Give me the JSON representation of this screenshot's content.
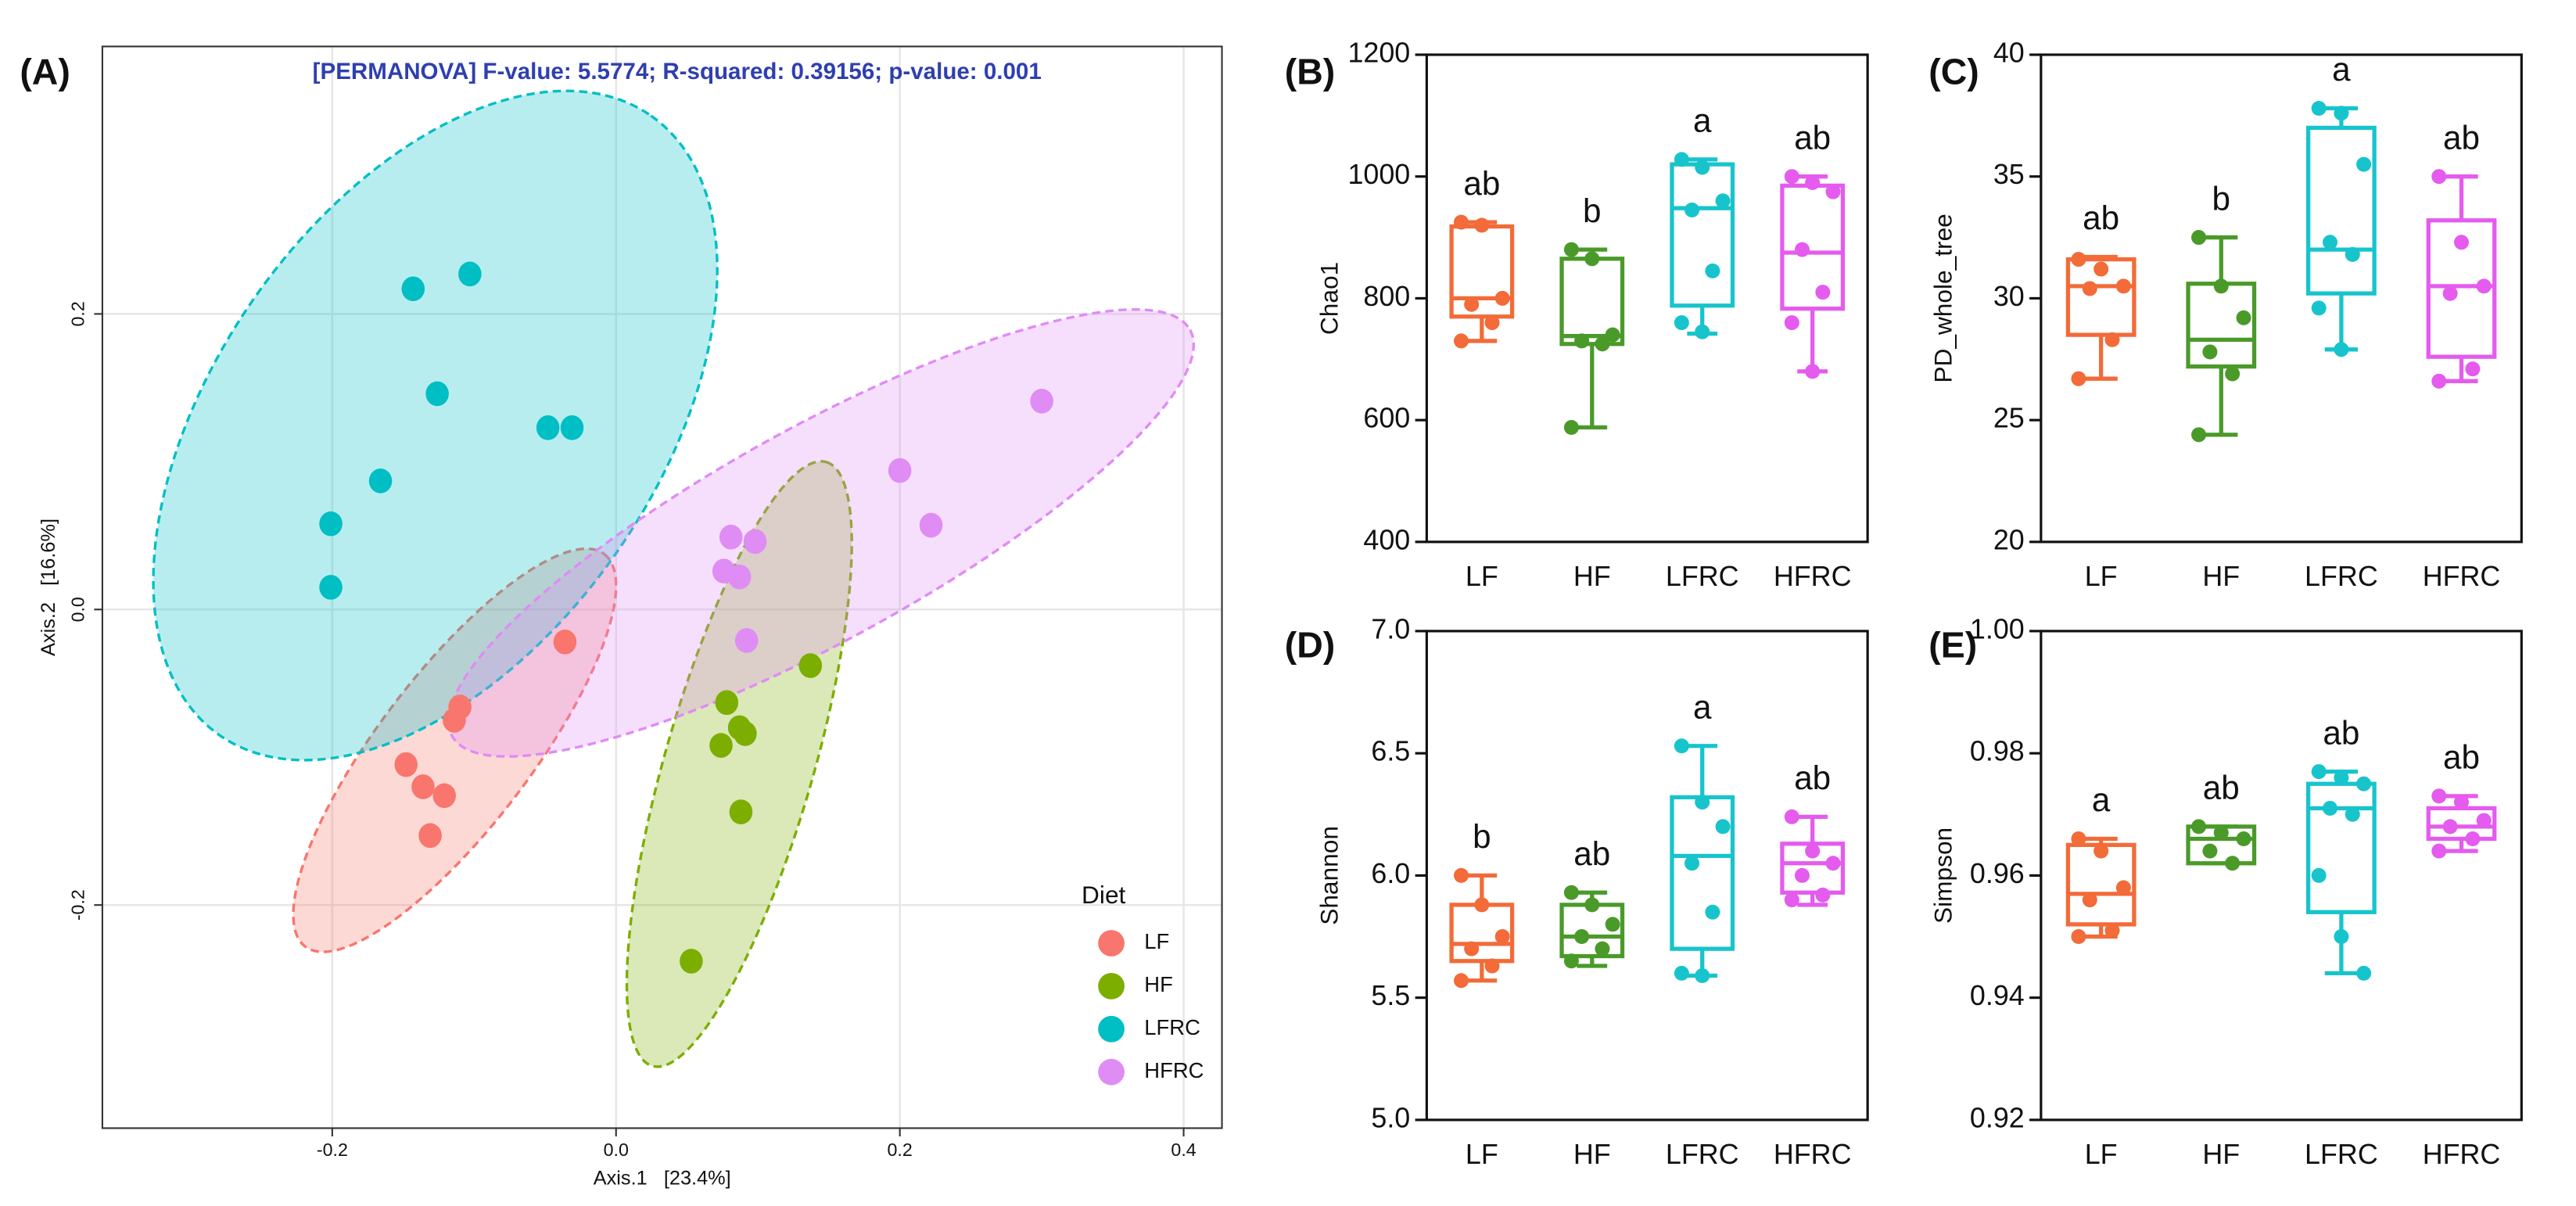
{
  "chart_data": [
    {
      "type": "scatter",
      "label": "(A)",
      "title": "[PERMANOVA] F-value: 5.5774; R-squared: 0.39156; p-value: 0.001",
      "xlabel": "Axis.1   [23.4%]",
      "ylabel": "Axis.2   [16.6%]",
      "xlim": [
        -0.362,
        0.427
      ],
      "ylim": [
        -0.351,
        0.381
      ],
      "xticks": [
        -0.2,
        {
          "value": 0,
          "label": "0.0"
        },
        0.2,
        0.4
      ],
      "yticks": [
        -0.2,
        {
          "value": 0,
          "label": "0.0"
        },
        0.2
      ],
      "grid": true,
      "legend": {
        "title": "Diet",
        "position": "bottom-right"
      },
      "series": [
        {
          "name": "LF",
          "color": "#f8766d",
          "x": [
            -0.036,
            -0.11,
            -0.114,
            -0.148,
            -0.136,
            -0.121,
            -0.131
          ],
          "y": [
            -0.022,
            -0.066,
            -0.075,
            -0.105,
            -0.12,
            -0.126,
            -0.153
          ]
        },
        {
          "name": "HF",
          "color": "#7cae00",
          "x": [
            0.137,
            0.078,
            0.087,
            0.091,
            0.074,
            0.088,
            0.053
          ],
          "y": [
            -0.038,
            -0.063,
            -0.08,
            -0.084,
            -0.092,
            -0.137,
            -0.238
          ]
        },
        {
          "name": "LFRC",
          "color": "#00bfc4",
          "x": [
            -0.143,
            -0.103,
            -0.126,
            -0.048,
            -0.031,
            -0.166,
            -0.201,
            -0.201
          ],
          "y": [
            0.217,
            0.227,
            0.146,
            0.123,
            0.123,
            0.087,
            0.058,
            0.015
          ]
        },
        {
          "name": "HFRC",
          "color": "#df8cf5",
          "x": [
            0.3,
            0.2,
            0.222,
            0.081,
            0.098,
            0.076,
            0.087,
            0.092
          ],
          "y": [
            0.141,
            0.094,
            0.057,
            0.049,
            0.046,
            0.026,
            0.022,
            -0.021
          ]
        }
      ]
    },
    {
      "type": "box",
      "label": "(B)",
      "ylabel": "Chao1",
      "ylim": [
        400,
        1200
      ],
      "yticks": [
        400,
        600,
        800,
        1000,
        1200
      ],
      "series": [
        {
          "name": "LF",
          "color": "#f26b38",
          "min": 730,
          "q1": 770,
          "median": 800,
          "q3": 918,
          "max": 925,
          "points": [
            925,
            920,
            800,
            790,
            760,
            730
          ],
          "letter": "ab"
        },
        {
          "name": "HF",
          "color": "#4a9a2a",
          "min": 588,
          "q1": 725,
          "median": 738,
          "q3": 865,
          "max": 880,
          "points": [
            880,
            865,
            740,
            730,
            725,
            588
          ],
          "letter": "b"
        },
        {
          "name": "LFRC",
          "color": "#17c4cc",
          "min": 742,
          "q1": 788,
          "median": 948,
          "q3": 1020,
          "max": 1028,
          "points": [
            1028,
            1015,
            960,
            945,
            845,
            760,
            745
          ],
          "letter": "a"
        },
        {
          "name": "HFRC",
          "color": "#e45bee",
          "min": 680,
          "q1": 783,
          "median": 875,
          "q3": 985,
          "max": 1000,
          "points": [
            1000,
            990,
            975,
            880,
            810,
            760,
            680
          ],
          "letter": "ab"
        }
      ]
    },
    {
      "type": "box",
      "label": "(C)",
      "ylabel": "PD_whole_tree",
      "ylim": [
        20,
        40
      ],
      "yticks": [
        20,
        25,
        30,
        35,
        40
      ],
      "series": [
        {
          "name": "LF",
          "color": "#f26b38",
          "min": 26.7,
          "q1": 28.5,
          "median": 30.5,
          "q3": 31.6,
          "max": 31.7,
          "points": [
            31.6,
            31.2,
            30.5,
            30.4,
            28.3,
            26.7
          ],
          "letter": "ab"
        },
        {
          "name": "HF",
          "color": "#4a9a2a",
          "min": 24.4,
          "q1": 27.2,
          "median": 28.3,
          "q3": 30.6,
          "max": 32.5,
          "points": [
            32.5,
            30.5,
            29.2,
            27.8,
            26.9,
            24.4
          ],
          "letter": "b"
        },
        {
          "name": "LFRC",
          "color": "#17c4cc",
          "min": 27.9,
          "q1": 30.2,
          "median": 32.0,
          "q3": 37.0,
          "max": 37.8,
          "points": [
            37.8,
            37.6,
            35.5,
            32.3,
            31.8,
            29.6,
            27.9
          ],
          "letter": "a"
        },
        {
          "name": "HFRC",
          "color": "#e45bee",
          "min": 26.6,
          "q1": 27.6,
          "median": 30.5,
          "q3": 33.2,
          "max": 35.0,
          "points": [
            35.0,
            32.3,
            30.5,
            30.2,
            27.1,
            26.6
          ],
          "letter": "ab"
        }
      ]
    },
    {
      "type": "box",
      "label": "(D)",
      "ylabel": "Shannon",
      "ylim": [
        5.0,
        7.0
      ],
      "yticks": [
        {
          "value": 5,
          "label": "5.0"
        },
        5.5,
        {
          "value": 6,
          "label": "6.0"
        },
        6.5,
        {
          "value": 7,
          "label": "7.0"
        }
      ],
      "series": [
        {
          "name": "LF",
          "color": "#f26b38",
          "min": 5.57,
          "q1": 5.65,
          "median": 5.72,
          "q3": 5.88,
          "max": 6.0,
          "points": [
            6.0,
            5.88,
            5.75,
            5.7,
            5.63,
            5.57
          ],
          "letter": "b"
        },
        {
          "name": "HF",
          "color": "#4a9a2a",
          "min": 5.63,
          "q1": 5.67,
          "median": 5.75,
          "q3": 5.88,
          "max": 5.93,
          "points": [
            5.93,
            5.88,
            5.8,
            5.75,
            5.7,
            5.65
          ],
          "letter": "ab"
        },
        {
          "name": "LFRC",
          "color": "#17c4cc",
          "min": 5.59,
          "q1": 5.7,
          "median": 6.08,
          "q3": 6.32,
          "max": 6.53,
          "points": [
            6.53,
            6.3,
            6.2,
            6.05,
            5.85,
            5.6,
            5.59
          ],
          "letter": "a"
        },
        {
          "name": "HFRC",
          "color": "#e45bee",
          "min": 5.88,
          "q1": 5.93,
          "median": 6.05,
          "q3": 6.13,
          "max": 6.24,
          "points": [
            6.24,
            6.1,
            6.05,
            6.0,
            5.92,
            5.9
          ],
          "letter": "ab"
        }
      ]
    },
    {
      "type": "box",
      "label": "(E)",
      "ylabel": "Simpson",
      "ylim": [
        0.92,
        1.0
      ],
      "yticks": [
        0.92,
        0.94,
        0.96,
        0.98,
        {
          "value": 1,
          "label": "1.00"
        }
      ],
      "series": [
        {
          "name": "LF",
          "color": "#f26b38",
          "min": 0.95,
          "q1": 0.952,
          "median": 0.957,
          "q3": 0.965,
          "max": 0.966,
          "points": [
            0.966,
            0.964,
            0.958,
            0.956,
            0.951,
            0.95
          ],
          "letter": "a"
        },
        {
          "name": "HF",
          "color": "#4a9a2a",
          "min": 0.962,
          "q1": 0.962,
          "median": 0.966,
          "q3": 0.968,
          "max": 0.968,
          "points": [
            0.968,
            0.967,
            0.966,
            0.964,
            0.962
          ],
          "letter": "ab"
        },
        {
          "name": "LFRC",
          "color": "#17c4cc",
          "min": 0.944,
          "q1": 0.954,
          "median": 0.971,
          "q3": 0.975,
          "max": 0.977,
          "points": [
            0.977,
            0.976,
            0.975,
            0.971,
            0.97,
            0.96,
            0.95,
            0.944
          ],
          "letter": "ab"
        },
        {
          "name": "HFRC",
          "color": "#e45bee",
          "min": 0.964,
          "q1": 0.966,
          "median": 0.968,
          "q3": 0.971,
          "max": 0.973,
          "points": [
            0.973,
            0.972,
            0.969,
            0.968,
            0.966,
            0.964
          ],
          "letter": "ab"
        }
      ]
    }
  ]
}
